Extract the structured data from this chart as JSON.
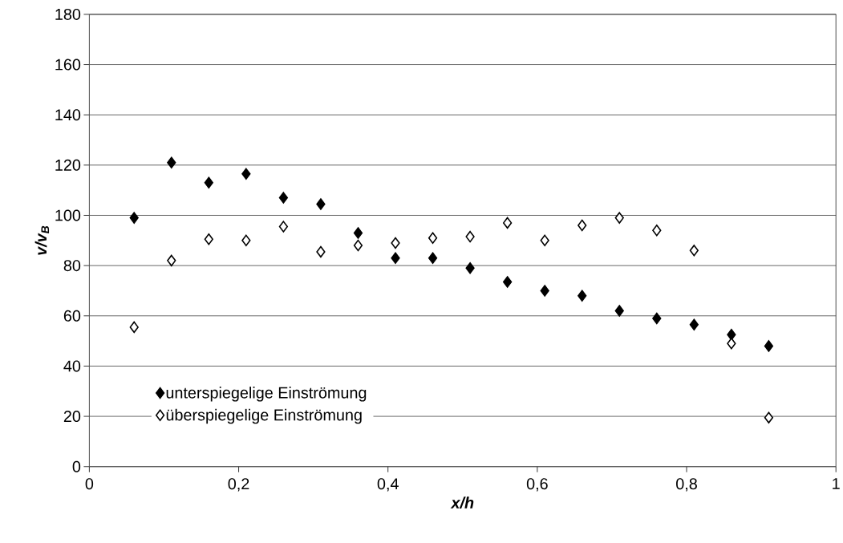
{
  "chart_data": {
    "type": "scatter",
    "xlabel": "x/h",
    "ylabel": "v/v$_{B}$",
    "x": [
      0.06,
      0.11,
      0.16,
      0.21,
      0.26,
      0.31,
      0.36,
      0.41,
      0.46,
      0.51,
      0.56,
      0.61,
      0.66,
      0.71,
      0.76,
      0.81,
      0.86,
      0.91
    ],
    "series": [
      {
        "name": "unterspiegelige Einströmung",
        "color": "#000000",
        "values": [
          99,
          121,
          113,
          116.5,
          107,
          104.5,
          93,
          83,
          83,
          79,
          73.5,
          70,
          68,
          62,
          59,
          56.5,
          52.5,
          48
        ]
      },
      {
        "name": "überspiegelige Einströmung",
        "color": "#000000",
        "values": [
          55.5,
          82,
          90.5,
          90,
          95.5,
          85.5,
          88,
          89,
          91,
          91.5,
          97,
          90,
          96,
          99,
          94,
          86,
          49,
          19.5
        ]
      }
    ],
    "xlim": [
      0,
      1
    ],
    "ylim": [
      0,
      180
    ],
    "xticks": [
      0,
      {
        "value": 0.2,
        "label": "0,2"
      },
      {
        "value": 0.4,
        "label": "0,4"
      },
      {
        "value": 0.6,
        "label": "0,6"
      },
      {
        "value": 0.8,
        "label": "0,8"
      },
      1
    ],
    "yticks": [
      0,
      20,
      40,
      60,
      80,
      100,
      120,
      140,
      160,
      180
    ],
    "grid": "y",
    "legend": "bottom left",
    "marker": "diamond"
  }
}
